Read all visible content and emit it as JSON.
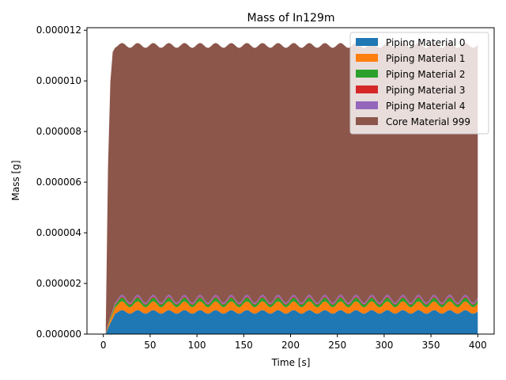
{
  "chart_data": {
    "type": "area",
    "stacked": true,
    "title": "Mass of In129m",
    "xlabel": "Time [s]",
    "ylabel": "Mass [g]",
    "xlim": [
      -17.5,
      417.5
    ],
    "ylim": [
      0,
      1.21e-05
    ],
    "xticks": [
      0,
      50,
      100,
      150,
      200,
      250,
      300,
      350,
      400
    ],
    "xtick_labels": [
      "0",
      "50",
      "100",
      "150",
      "200",
      "250",
      "300",
      "350",
      "400"
    ],
    "yticks": [
      0,
      2e-06,
      4e-06,
      6e-06,
      8e-06,
      1e-05,
      1.2e-05
    ],
    "ytick_labels": [
      "0.000000",
      "0.000002",
      "0.000004",
      "0.000006",
      "0.000008",
      "0.000010",
      "0.000012"
    ],
    "legend_position": "top-right",
    "time": {
      "start": 0,
      "end": 400,
      "step": 2.5,
      "ramp_end": 12.5,
      "period": 16.67
    },
    "series": [
      {
        "name": "Piping Material 0",
        "color": "#1f77b4",
        "base": 8e-07,
        "amplitude": 1.5e-07
      },
      {
        "name": "Piping Material 1",
        "color": "#ff7f0e",
        "base": 2.5e-07,
        "amplitude": 1e-07
      },
      {
        "name": "Piping Material 2",
        "color": "#2ca02c",
        "base": 1e-07,
        "amplitude": 5e-08
      },
      {
        "name": "Piping Material 3",
        "color": "#d62728",
        "base": 3e-08,
        "amplitude": 1e-08
      },
      {
        "name": "Piping Material 4",
        "color": "#9467bd",
        "base": 5e-08,
        "amplitude": 2e-08
      },
      {
        "name": "Core Material 999",
        "color": "#8c564b",
        "total_top": 1.13e-05,
        "total_amplitude": 2e-07
      }
    ]
  }
}
